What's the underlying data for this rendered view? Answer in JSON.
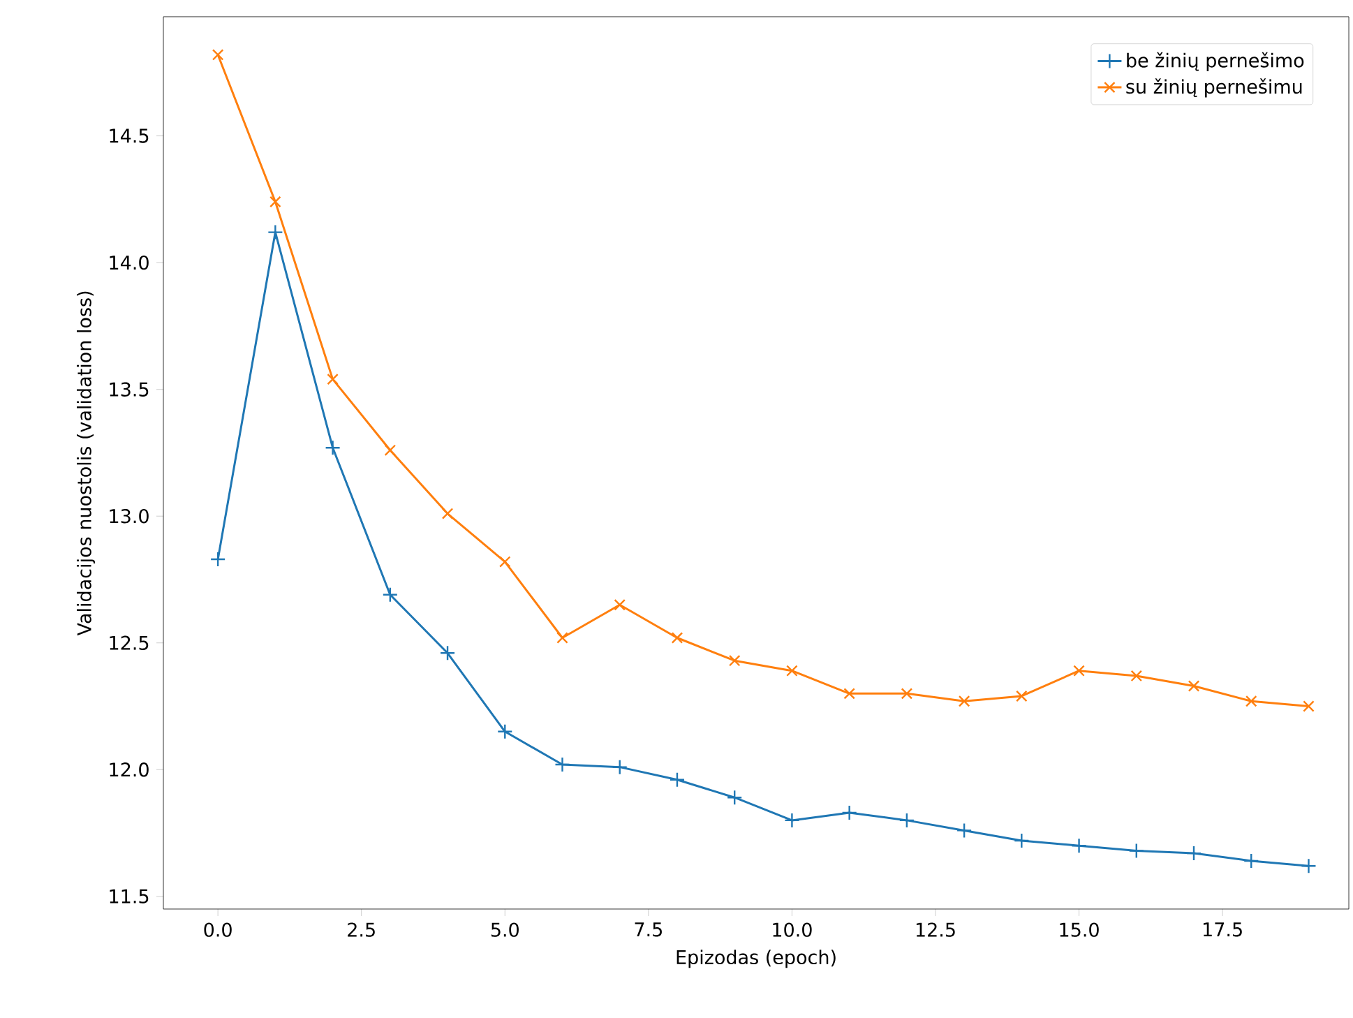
{
  "chart_data": {
    "type": "line",
    "xlabel": "Epizodas (epoch)",
    "ylabel": "Validacijos nuostolis (validation loss)",
    "x": [
      0,
      1,
      2,
      3,
      4,
      5,
      6,
      7,
      8,
      9,
      10,
      11,
      12,
      13,
      14,
      15,
      16,
      17,
      18,
      19
    ],
    "series": [
      {
        "name": "be žinių pernešimo",
        "color": "#1f77b4",
        "marker": "plus",
        "values": [
          12.83,
          14.12,
          13.27,
          12.69,
          12.46,
          12.15,
          12.02,
          12.01,
          11.96,
          11.89,
          11.8,
          11.83,
          11.8,
          11.76,
          11.72,
          11.7,
          11.68,
          11.67,
          11.64,
          11.62
        ]
      },
      {
        "name": "su žinių pernešimu",
        "color": "#ff7f0e",
        "marker": "cross",
        "values": [
          14.82,
          14.24,
          13.54,
          13.26,
          13.01,
          12.82,
          12.52,
          12.65,
          12.52,
          12.43,
          12.39,
          12.3,
          12.3,
          12.27,
          12.29,
          12.39,
          12.37,
          12.33,
          12.27,
          12.25
        ]
      }
    ],
    "xlim": [
      -0.95,
      19.7
    ],
    "ylim": [
      11.45,
      14.97
    ],
    "xticks": [
      {
        "value": 0,
        "label": "0.0"
      },
      2.5,
      {
        "value": 5,
        "label": "5.0"
      },
      7.5,
      {
        "value": 10,
        "label": "10.0"
      },
      12.5,
      {
        "value": 15,
        "label": "15.0"
      },
      17.5
    ],
    "yticks": [
      11.5,
      {
        "value": 12,
        "label": "12.0"
      },
      12.5,
      {
        "value": 13,
        "label": "13.0"
      },
      13.5,
      {
        "value": 14,
        "label": "14.0"
      },
      14.5
    ],
    "grid": false,
    "legend": "top right",
    "line_style": "solid"
  }
}
